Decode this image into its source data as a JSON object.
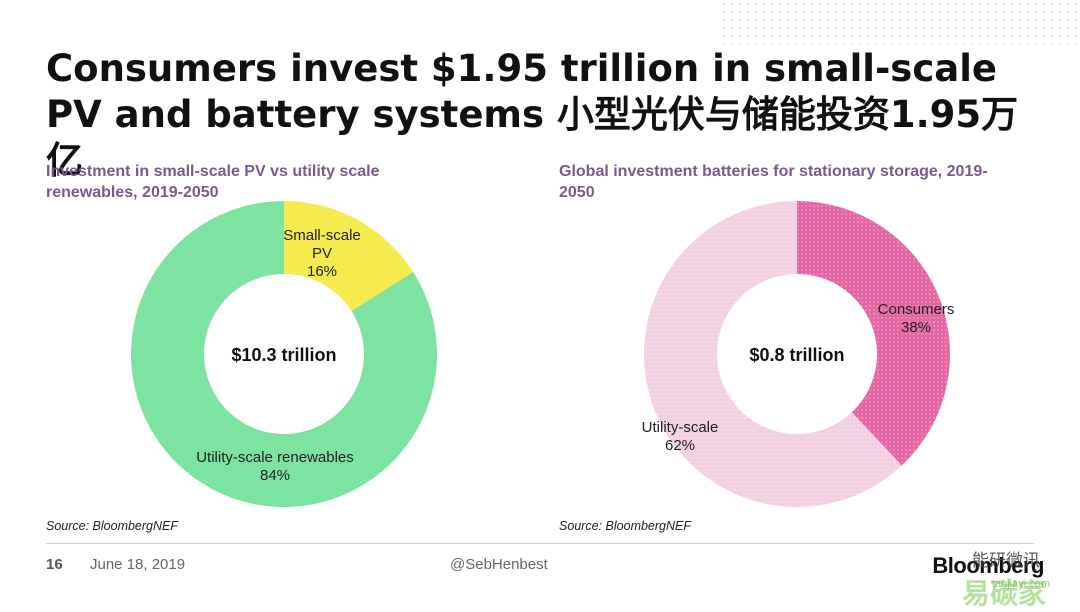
{
  "title": "Consumers invest $1.95 trillion in small-scale PV and battery systems 小型光伏与储能投资1.95万亿",
  "chart_data": [
    {
      "type": "pie",
      "title": "Investment in small-scale PV vs utility scale renewables, 2019-2050",
      "center_label": "$10.3 trillion",
      "source": "Source: BloombergNEF",
      "slices": [
        {
          "label_lines": [
            "Small-scale",
            "PV"
          ],
          "value": 16,
          "value_label": "16%",
          "color": "#f5ea4e"
        },
        {
          "label_lines": [
            "Utility-scale renewables"
          ],
          "value": 84,
          "value_label": "84%",
          "color": "#7de3a0"
        }
      ]
    },
    {
      "type": "pie",
      "title": "Global investment batteries for stationary storage, 2019-2050",
      "center_label": "$0.8 trillion",
      "source": "Source: BloombergNEF",
      "slices": [
        {
          "label_lines": [
            "Consumers"
          ],
          "value": 38,
          "value_label": "38%",
          "color": "#e466a5"
        },
        {
          "label_lines": [
            "Utility-scale"
          ],
          "value": 62,
          "value_label": "62%",
          "color": "#f2cfe1"
        }
      ]
    }
  ],
  "footer": {
    "page_number": "16",
    "date": "June 18, 2019",
    "handle": "@SebHenbest",
    "logo": "Bloomberg",
    "wechat": "能研微讯",
    "watermark": "易碳家",
    "watermark_url": "tanjiayi.com"
  }
}
